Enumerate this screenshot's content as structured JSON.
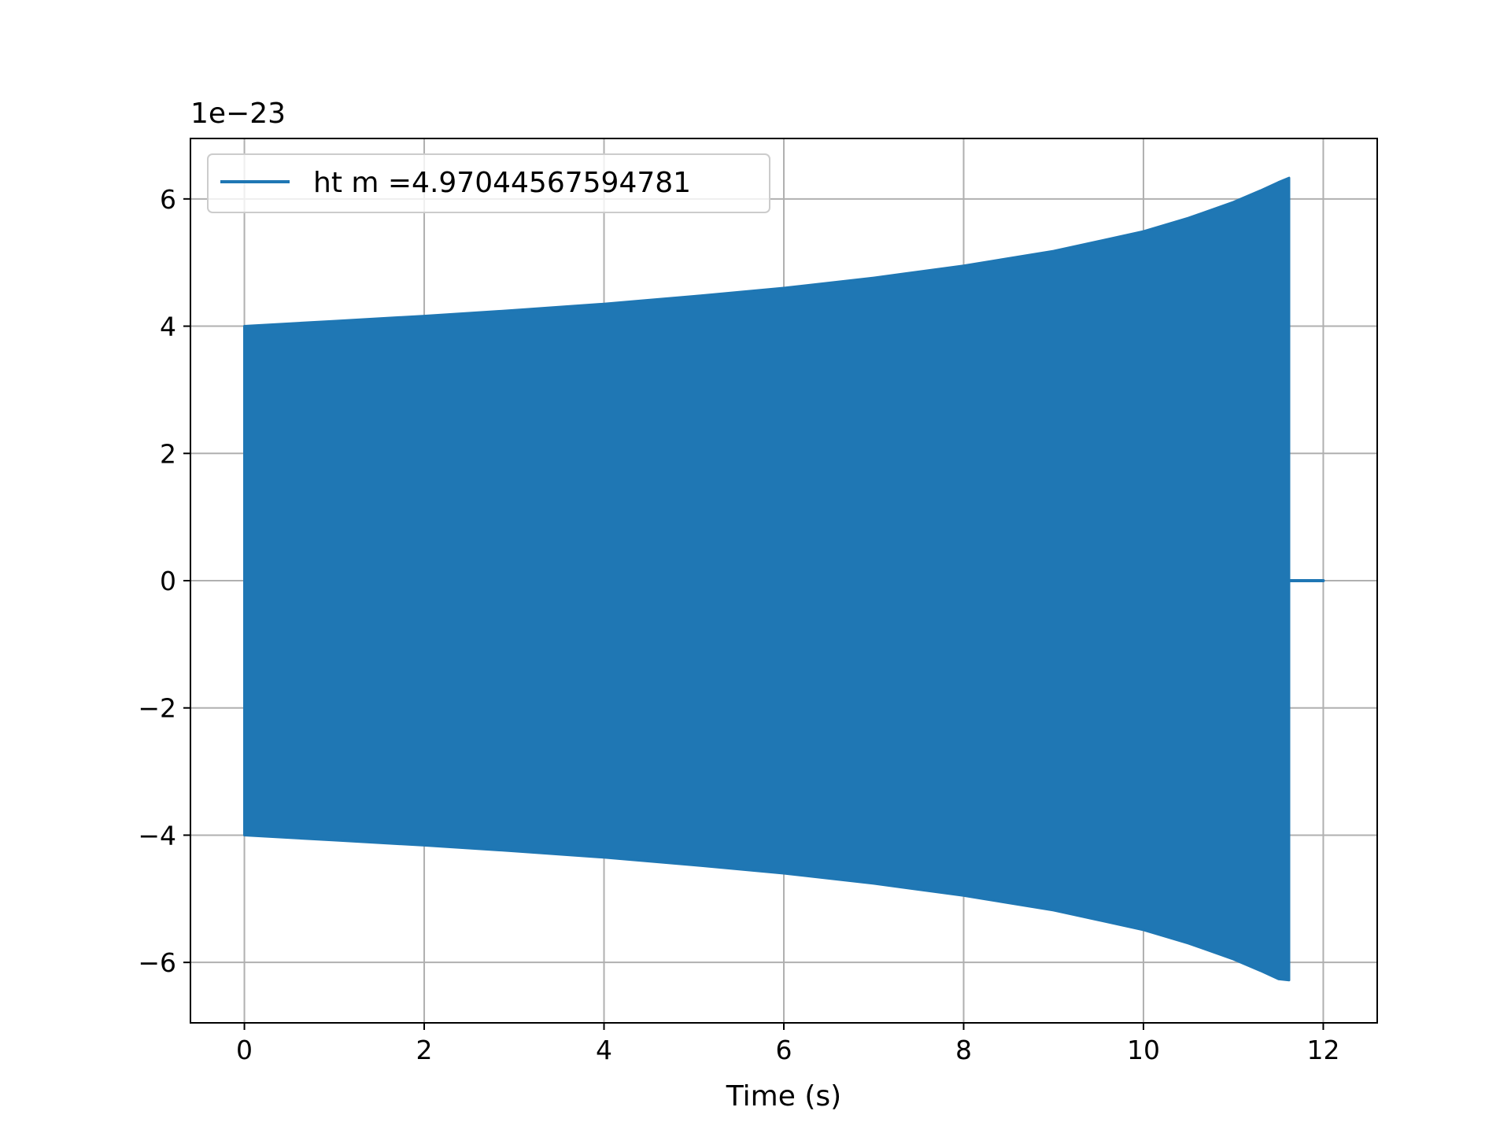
{
  "chart_data": {
    "type": "line",
    "title": "",
    "xlabel": "Time (s)",
    "ylabel": "",
    "y_offset_label": "1e−23",
    "xlim": [
      -0.6,
      12.6
    ],
    "ylim": [
      -6.95,
      6.95
    ],
    "x_ticks": [
      0,
      2,
      4,
      6,
      8,
      10,
      12
    ],
    "x_tick_labels": [
      "0",
      "2",
      "4",
      "6",
      "8",
      "10",
      "12"
    ],
    "y_ticks": [
      -6,
      -4,
      -2,
      0,
      2,
      4,
      6
    ],
    "y_tick_labels": [
      "−6",
      "−4",
      "−2",
      "0",
      "2",
      "4",
      "6"
    ],
    "grid": true,
    "legend_placement": "top-left",
    "series": [
      {
        "name": "ht m =4.97044567594781",
        "color": "#1f77b4",
        "envelope": {
          "x": [
            0.0,
            1.0,
            2.0,
            3.0,
            4.0,
            5.0,
            6.0,
            7.0,
            8.0,
            9.0,
            10.0,
            10.5,
            11.0,
            11.3,
            11.5,
            11.62
          ],
          "upper": [
            4.0,
            4.08,
            4.16,
            4.25,
            4.35,
            4.47,
            4.6,
            4.76,
            4.95,
            5.18,
            5.49,
            5.7,
            5.95,
            6.13,
            6.26,
            6.33
          ],
          "lower": [
            -4.0,
            -4.08,
            -4.16,
            -4.25,
            -4.35,
            -4.47,
            -4.6,
            -4.76,
            -4.95,
            -5.18,
            -5.49,
            -5.7,
            -5.95,
            -6.13,
            -6.26,
            -6.28
          ]
        },
        "tail": {
          "x": [
            11.62,
            12.0
          ],
          "y": [
            0,
            0
          ]
        }
      }
    ]
  }
}
